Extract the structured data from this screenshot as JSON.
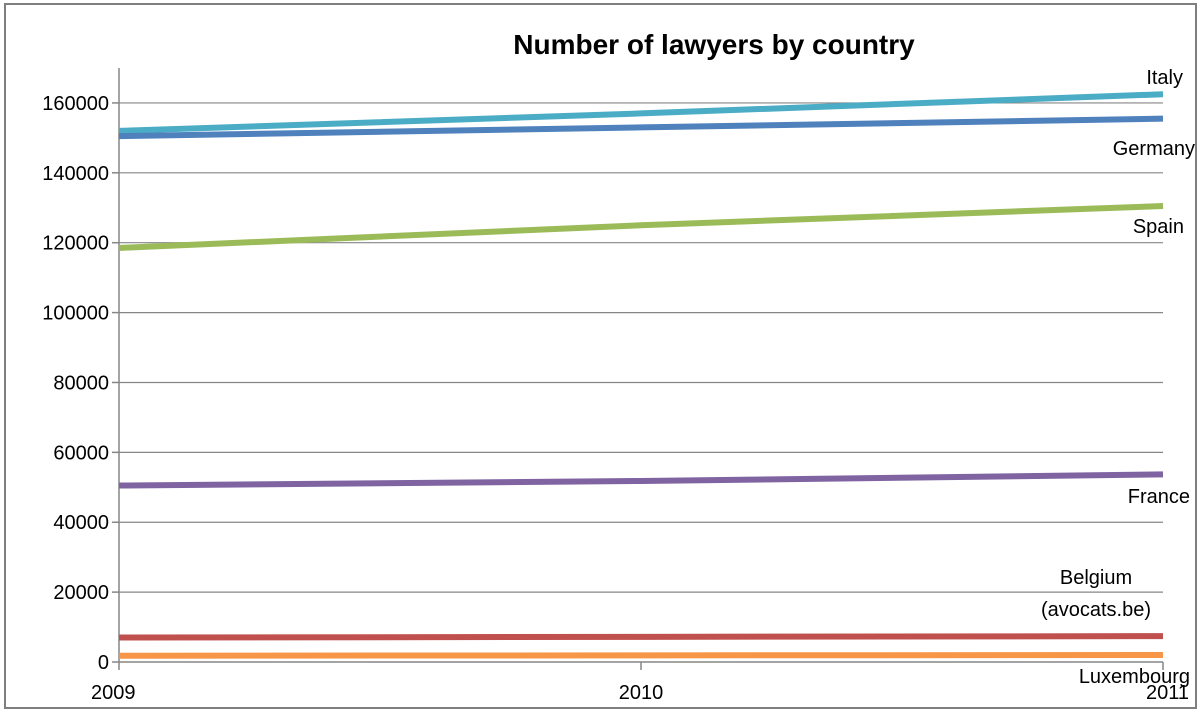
{
  "chart_data": {
    "type": "line",
    "title": "Number of lawyers by country",
    "xlabel": "",
    "ylabel": "",
    "x": [
      2009,
      2010,
      2011
    ],
    "x_tick_labels": [
      "2009",
      "2010",
      "2011"
    ],
    "ylim": [
      0,
      170000
    ],
    "y_ticks": [
      0,
      20000,
      40000,
      60000,
      80000,
      100000,
      120000,
      140000,
      160000
    ],
    "y_tick_labels": [
      "0",
      "20000",
      "40000",
      "60000",
      "80000",
      "100000",
      "120000",
      "140000",
      "160000"
    ],
    "grid": true,
    "legend": "none (series labels at line ends)",
    "series": [
      {
        "name": "Italy",
        "label_lines": [
          "Italy"
        ],
        "values": [
          152000,
          157000,
          162500
        ],
        "color": "#4bacc6"
      },
      {
        "name": "Germany",
        "label_lines": [
          "Germany"
        ],
        "values": [
          150500,
          153000,
          155500
        ],
        "color": "#4f81bd"
      },
      {
        "name": "Spain",
        "label_lines": [
          "Spain"
        ],
        "values": [
          118500,
          125000,
          130500
        ],
        "color": "#9bbb59"
      },
      {
        "name": "France",
        "label_lines": [
          "France"
        ],
        "values": [
          50500,
          51800,
          53700
        ],
        "color": "#8064a2"
      },
      {
        "name": "Belgium (avocats.be)",
        "label_lines": [
          "Belgium",
          "(avocats.be)"
        ],
        "values": [
          7000,
          7200,
          7400
        ],
        "color": "#c0504d"
      },
      {
        "name": "Luxembourg",
        "label_lines": [
          "Luxembourg"
        ],
        "values": [
          1800,
          1900,
          2000
        ],
        "color": "#f79646"
      }
    ]
  }
}
